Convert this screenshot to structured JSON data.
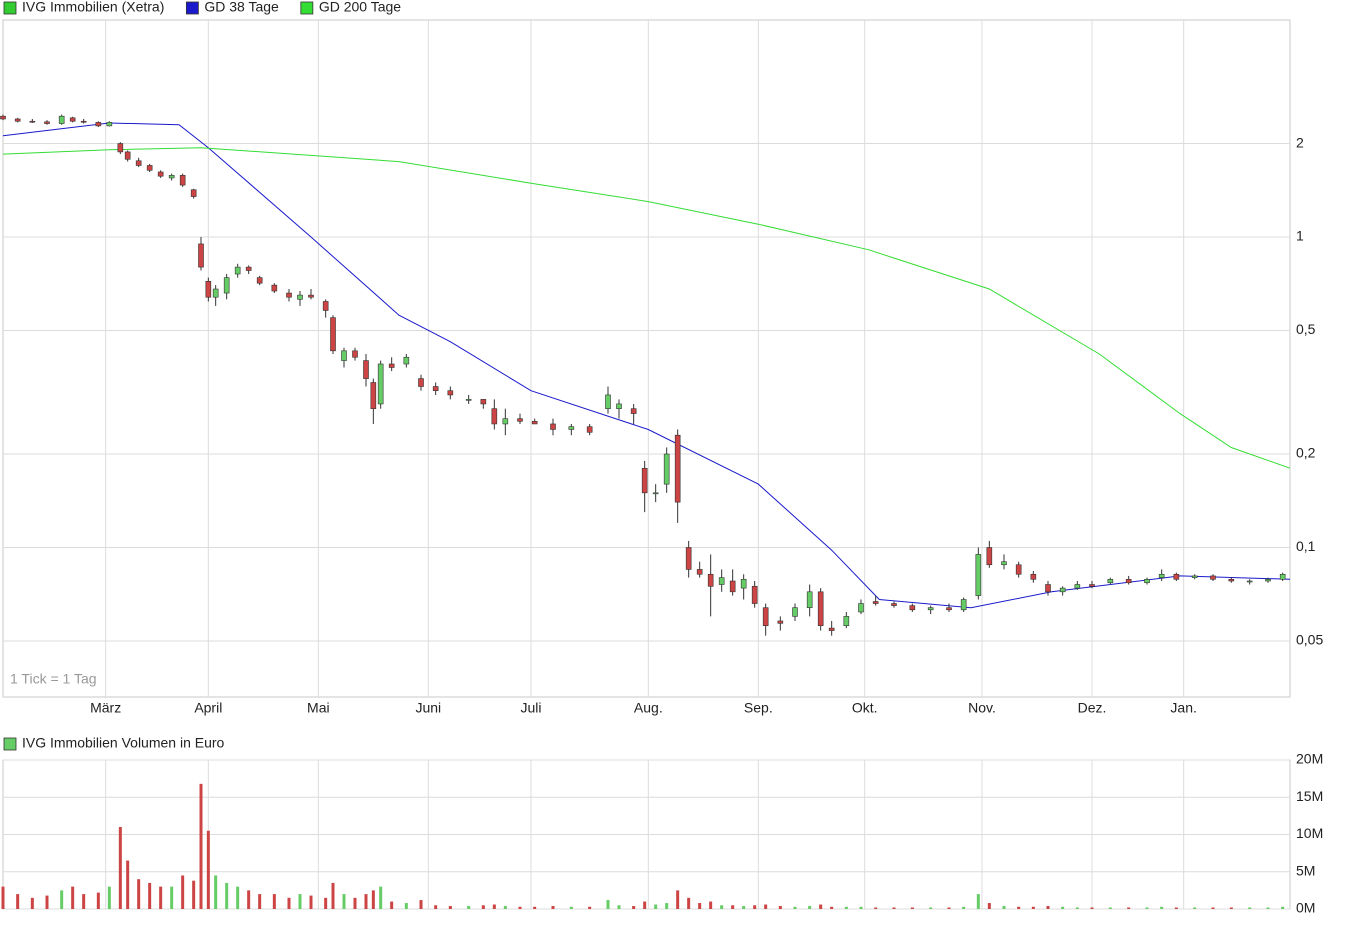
{
  "chart_data": [
    {
      "type": "candlestick",
      "log_scale": true,
      "grid": true,
      "annotation": "1 Tick = 1 Tag",
      "xlim": [
        0,
        351
      ],
      "xticks": [
        {
          "value": 28,
          "label": "März"
        },
        {
          "value": 56,
          "label": "April"
        },
        {
          "value": 86,
          "label": "Mai"
        },
        {
          "value": 116,
          "label": "Juni"
        },
        {
          "value": 144,
          "label": "Juli"
        },
        {
          "value": 176,
          "label": "Aug."
        },
        {
          "value": 206,
          "label": "Sep."
        },
        {
          "value": 235,
          "label": "Okt."
        },
        {
          "value": 267,
          "label": "Nov."
        },
        {
          "value": 297,
          "label": "Dez."
        },
        {
          "value": 322,
          "label": "Jan."
        }
      ],
      "ylim": [
        0.033,
        5.0
      ],
      "yticks": [
        2,
        1,
        {
          "value": 0.5,
          "label": "0,5"
        },
        {
          "value": 0.2,
          "label": "0,2"
        },
        {
          "value": 0.1,
          "label": "0,1"
        },
        {
          "value": 0.05,
          "label": "0,05"
        }
      ],
      "candles": {
        "name": "IVG Immobilien (Xetra)",
        "color": "#33cc33",
        "up_color": "#66cc66",
        "down_color": "#cc4444",
        "x": [
          0,
          4,
          8,
          12,
          16,
          19,
          22,
          26,
          29,
          32,
          34,
          37,
          40,
          43,
          46,
          49,
          52,
          54,
          56,
          58,
          61,
          64,
          67,
          70,
          74,
          78,
          81,
          84,
          88,
          90,
          93,
          96,
          99,
          101,
          103,
          106,
          110,
          114,
          118,
          122,
          127,
          131,
          134,
          137,
          141,
          145,
          150,
          155,
          160,
          165,
          168,
          172,
          175,
          178,
          181,
          184,
          187,
          190,
          193,
          196,
          199,
          202,
          205,
          208,
          212,
          216,
          220,
          223,
          226,
          230,
          234,
          238,
          243,
          248,
          253,
          258,
          262,
          266,
          269,
          273,
          277,
          281,
          285,
          289,
          293,
          297,
          302,
          307,
          312,
          316,
          320,
          325,
          330,
          335,
          340,
          345,
          349
        ],
        "open": [
          2.45,
          2.4,
          2.36,
          2.35,
          2.32,
          2.42,
          2.36,
          2.34,
          2.28,
          2.0,
          1.88,
          1.76,
          1.7,
          1.62,
          1.55,
          1.58,
          1.42,
          0.95,
          0.72,
          0.64,
          0.66,
          0.76,
          0.8,
          0.74,
          0.7,
          0.66,
          0.63,
          0.65,
          0.62,
          0.55,
          0.4,
          0.43,
          0.4,
          0.34,
          0.29,
          0.39,
          0.39,
          0.35,
          0.33,
          0.32,
          0.3,
          0.3,
          0.28,
          0.25,
          0.26,
          0.255,
          0.25,
          0.24,
          0.245,
          0.28,
          0.28,
          0.28,
          0.18,
          0.15,
          0.16,
          0.23,
          0.1,
          0.085,
          0.082,
          0.076,
          0.078,
          0.074,
          0.075,
          0.064,
          0.058,
          0.06,
          0.064,
          0.072,
          0.055,
          0.056,
          0.062,
          0.067,
          0.066,
          0.065,
          0.063,
          0.064,
          0.063,
          0.07,
          0.1,
          0.088,
          0.088,
          0.082,
          0.076,
          0.072,
          0.074,
          0.076,
          0.077,
          0.079,
          0.077,
          0.08,
          0.082,
          0.08,
          0.081,
          0.079,
          0.078,
          0.078,
          0.079
        ],
        "high": [
          2.48,
          2.42,
          2.4,
          2.38,
          2.48,
          2.44,
          2.4,
          2.36,
          2.36,
          2.02,
          1.9,
          1.8,
          1.72,
          1.64,
          1.6,
          1.6,
          1.43,
          1.0,
          0.74,
          0.7,
          0.76,
          0.82,
          0.81,
          0.75,
          0.71,
          0.68,
          0.67,
          0.68,
          0.63,
          0.56,
          0.44,
          0.44,
          0.42,
          0.35,
          0.4,
          0.41,
          0.42,
          0.36,
          0.34,
          0.33,
          0.31,
          0.3,
          0.3,
          0.28,
          0.27,
          0.26,
          0.26,
          0.25,
          0.25,
          0.33,
          0.3,
          0.29,
          0.19,
          0.16,
          0.21,
          0.24,
          0.105,
          0.09,
          0.095,
          0.085,
          0.085,
          0.082,
          0.078,
          0.066,
          0.06,
          0.066,
          0.076,
          0.074,
          0.058,
          0.062,
          0.068,
          0.07,
          0.067,
          0.066,
          0.065,
          0.066,
          0.069,
          0.1,
          0.105,
          0.095,
          0.09,
          0.084,
          0.078,
          0.075,
          0.078,
          0.078,
          0.08,
          0.081,
          0.08,
          0.085,
          0.083,
          0.082,
          0.082,
          0.08,
          0.079,
          0.08,
          0.083
        ],
        "low": [
          2.38,
          2.34,
          2.33,
          2.3,
          2.3,
          2.34,
          2.32,
          2.26,
          2.27,
          1.85,
          1.75,
          1.68,
          1.62,
          1.55,
          1.52,
          1.45,
          1.33,
          0.78,
          0.62,
          0.6,
          0.63,
          0.74,
          0.76,
          0.7,
          0.66,
          0.62,
          0.6,
          0.63,
          0.55,
          0.42,
          0.38,
          0.4,
          0.33,
          0.25,
          0.28,
          0.37,
          0.38,
          0.32,
          0.31,
          0.3,
          0.29,
          0.28,
          0.24,
          0.23,
          0.25,
          0.25,
          0.23,
          0.23,
          0.23,
          0.27,
          0.26,
          0.25,
          0.13,
          0.14,
          0.15,
          0.12,
          0.08,
          0.08,
          0.06,
          0.072,
          0.07,
          0.068,
          0.064,
          0.052,
          0.054,
          0.058,
          0.06,
          0.054,
          0.052,
          0.055,
          0.061,
          0.065,
          0.064,
          0.062,
          0.061,
          0.062,
          0.062,
          0.068,
          0.086,
          0.085,
          0.08,
          0.077,
          0.07,
          0.07,
          0.073,
          0.074,
          0.076,
          0.076,
          0.076,
          0.078,
          0.078,
          0.079,
          0.078,
          0.077,
          0.076,
          0.077,
          0.078
        ],
        "close": [
          2.4,
          2.36,
          2.35,
          2.32,
          2.45,
          2.36,
          2.35,
          2.28,
          2.34,
          1.88,
          1.78,
          1.7,
          1.64,
          1.57,
          1.58,
          1.47,
          1.35,
          0.8,
          0.64,
          0.68,
          0.74,
          0.8,
          0.78,
          0.71,
          0.67,
          0.64,
          0.65,
          0.64,
          0.58,
          0.43,
          0.43,
          0.41,
          0.35,
          0.28,
          0.39,
          0.38,
          0.41,
          0.33,
          0.32,
          0.31,
          0.3,
          0.29,
          0.25,
          0.26,
          0.255,
          0.25,
          0.24,
          0.245,
          0.235,
          0.31,
          0.29,
          0.27,
          0.15,
          0.15,
          0.2,
          0.14,
          0.085,
          0.082,
          0.075,
          0.08,
          0.072,
          0.079,
          0.066,
          0.056,
          0.057,
          0.064,
          0.072,
          0.056,
          0.054,
          0.06,
          0.066,
          0.066,
          0.065,
          0.063,
          0.064,
          0.063,
          0.068,
          0.095,
          0.088,
          0.09,
          0.082,
          0.079,
          0.072,
          0.074,
          0.076,
          0.075,
          0.079,
          0.077,
          0.079,
          0.082,
          0.079,
          0.081,
          0.079,
          0.078,
          0.078,
          0.079,
          0.082
        ]
      },
      "series": [
        {
          "name": "GD 38 Tage",
          "color": "#1a1acc",
          "x": [
            0,
            29,
            48,
            56,
            84,
            108,
            122,
            144,
            176,
            206,
            226,
            239,
            264,
            286,
            321,
            351
          ],
          "values": [
            2.12,
            2.33,
            2.3,
            1.94,
            1.0,
            0.56,
            0.46,
            0.32,
            0.24,
            0.16,
            0.098,
            0.068,
            0.064,
            0.072,
            0.081,
            0.079
          ]
        },
        {
          "name": "GD 200 Tage",
          "color": "#33dd33",
          "x": [
            0,
            29,
            54,
            108,
            144,
            176,
            206,
            236,
            269,
            299,
            321,
            335,
            351
          ],
          "values": [
            1.85,
            1.91,
            1.94,
            1.75,
            1.49,
            1.3,
            1.1,
            0.91,
            0.68,
            0.42,
            0.27,
            0.21,
            0.18
          ]
        }
      ]
    },
    {
      "type": "volume",
      "grid": true,
      "ylim": [
        0,
        20000000
      ],
      "yticks": [
        {
          "value": 20000000,
          "label": "20M"
        },
        {
          "value": 15000000,
          "label": "15M"
        },
        {
          "value": 10000000,
          "label": "10M"
        },
        {
          "value": 5000000,
          "label": "5M"
        },
        {
          "value": 0,
          "label": "0M"
        }
      ],
      "series": [
        {
          "name": "IVG Immobilien Volumen in Euro",
          "color": "#66cc66",
          "values": [
            3000000,
            2000000,
            1500000,
            1800000,
            2500000,
            3000000,
            2000000,
            2200000,
            3000000,
            11000000,
            6500000,
            4000000,
            3500000,
            3000000,
            3000000,
            4500000,
            3800000,
            16800000,
            10500000,
            4500000,
            3500000,
            3000000,
            2500000,
            2000000,
            2000000,
            1500000,
            2000000,
            1800000,
            1500000,
            3500000,
            2000000,
            1500000,
            2000000,
            2500000,
            3000000,
            1000000,
            800000,
            1200000,
            500000,
            400000,
            400000,
            500000,
            600000,
            400000,
            300000,
            300000,
            400000,
            300000,
            300000,
            1200000,
            500000,
            400000,
            1000000,
            600000,
            800000,
            2500000,
            1500000,
            800000,
            1000000,
            500000,
            500000,
            400000,
            500000,
            600000,
            400000,
            300000,
            400000,
            600000,
            300000,
            300000,
            300000,
            200000,
            200000,
            200000,
            200000,
            200000,
            300000,
            2000000,
            800000,
            400000,
            300000,
            300000,
            400000,
            300000,
            200000,
            200000,
            200000,
            200000,
            200000,
            300000,
            200000,
            200000,
            200000,
            200000,
            200000,
            200000,
            300000
          ]
        }
      ]
    }
  ]
}
